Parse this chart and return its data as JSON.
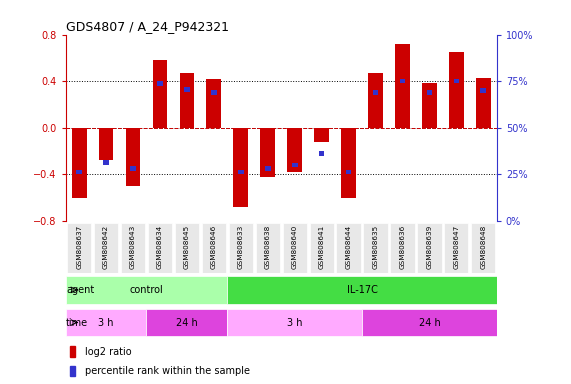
{
  "title": "GDS4807 / A_24_P942321",
  "samples": [
    "GSM808637",
    "GSM808642",
    "GSM808643",
    "GSM808634",
    "GSM808645",
    "GSM808646",
    "GSM808633",
    "GSM808638",
    "GSM808640",
    "GSM808641",
    "GSM808644",
    "GSM808635",
    "GSM808636",
    "GSM808639",
    "GSM808647",
    "GSM808648"
  ],
  "log2_ratios": [
    -0.6,
    -0.28,
    -0.5,
    0.58,
    0.47,
    0.42,
    -0.68,
    -0.42,
    -0.38,
    -0.12,
    -0.6,
    0.47,
    0.72,
    0.38,
    0.65,
    0.43
  ],
  "blue_positions": [
    -0.38,
    -0.3,
    -0.35,
    0.38,
    0.33,
    0.3,
    -0.38,
    -0.35,
    -0.32,
    -0.22,
    -0.38,
    0.3,
    0.4,
    0.3,
    0.4,
    0.32
  ],
  "ylim": [
    -0.8,
    0.8
  ],
  "yticks": [
    -0.8,
    -0.4,
    0.0,
    0.4,
    0.8
  ],
  "dotted_lines": [
    -0.4,
    0.0,
    0.4
  ],
  "bar_color": "#cc0000",
  "dot_color": "#3333cc",
  "agent_groups": [
    {
      "label": "control",
      "start": 0,
      "end": 6,
      "color": "#aaffaa"
    },
    {
      "label": "IL-17C",
      "start": 6,
      "end": 16,
      "color": "#44dd44"
    }
  ],
  "time_groups": [
    {
      "label": "3 h",
      "start": 0,
      "end": 3,
      "color": "#ffaaff"
    },
    {
      "label": "24 h",
      "start": 3,
      "end": 6,
      "color": "#dd44dd"
    },
    {
      "label": "3 h",
      "start": 6,
      "end": 11,
      "color": "#ffaaff"
    },
    {
      "label": "24 h",
      "start": 11,
      "end": 16,
      "color": "#dd44dd"
    }
  ],
  "right_ytick_labels": [
    "0%",
    "25%",
    "50%",
    "75%",
    "100%"
  ],
  "right_ytick_positions": [
    -0.8,
    -0.4,
    0.0,
    0.4,
    0.8
  ],
  "legend_items": [
    {
      "label": "log2 ratio",
      "color": "#cc0000"
    },
    {
      "label": "percentile rank within the sample",
      "color": "#3333cc"
    }
  ]
}
